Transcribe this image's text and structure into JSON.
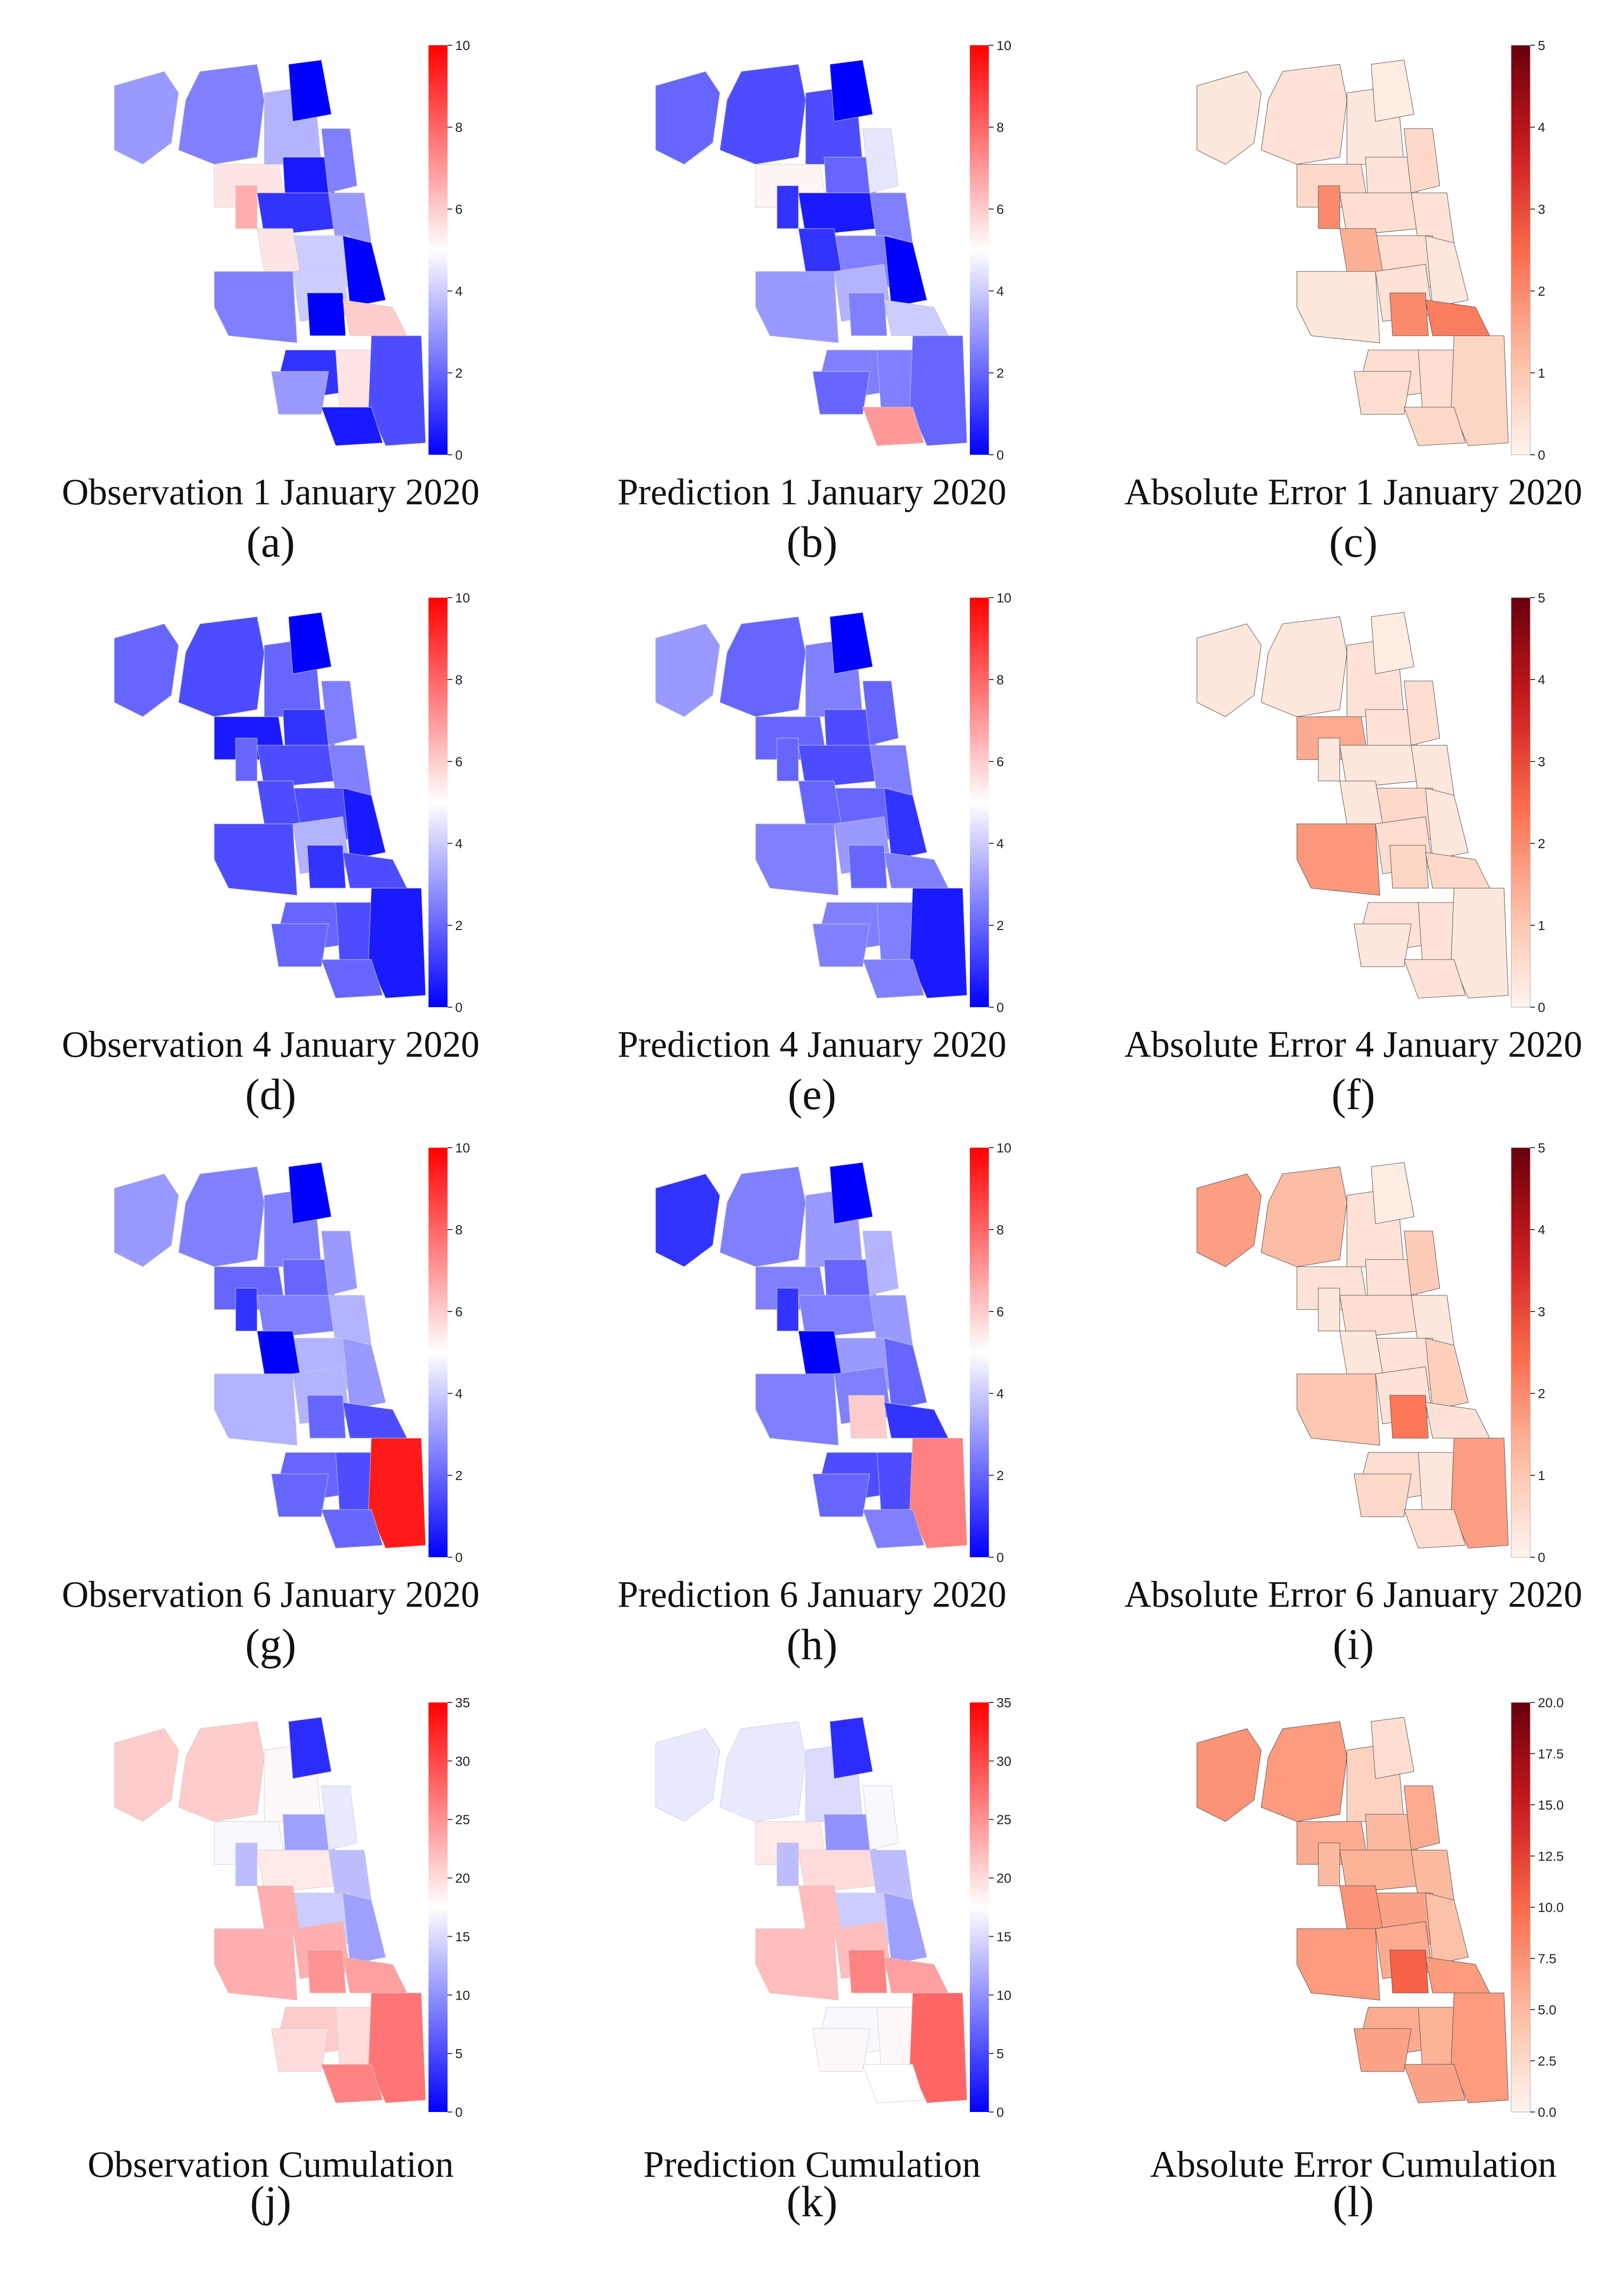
{
  "figure": {
    "panels": [
      {
        "id": "a",
        "label": "(a)",
        "title": "Observation 1 January 2020",
        "kind": "obs",
        "colorscale": "bwr",
        "ticks": [
          "0",
          "2",
          "4",
          "6",
          "8",
          "10"
        ],
        "vmax": 10,
        "region_values": [
          3,
          2.5,
          3.5,
          0,
          5.5,
          6.6,
          0.5,
          1,
          2.5,
          3,
          4,
          0,
          5.5,
          2.5,
          4,
          0,
          6,
          1,
          3,
          5.5,
          1.5,
          0.5
        ]
      },
      {
        "id": "b",
        "label": "(b)",
        "title": "Prediction 1 January 2020",
        "kind": "pred",
        "colorscale": "bwr",
        "ticks": [
          "0",
          "2",
          "4",
          "6",
          "8",
          "10"
        ],
        "vmax": 10,
        "region_values": [
          2,
          1.5,
          1.5,
          0,
          5.2,
          1,
          2,
          0.5,
          4.5,
          2.5,
          2.5,
          0,
          1,
          3,
          3.5,
          2.5,
          4,
          2.5,
          2,
          2.5,
          2,
          7
        ]
      },
      {
        "id": "c",
        "label": "(c)",
        "title": "Absolute Error 1 January 2020",
        "kind": "err",
        "colorscale": "reds",
        "ticks": [
          "0",
          "1",
          "2",
          "3",
          "4",
          "5"
        ],
        "vmax": 5,
        "region_values": [
          0.3,
          0.4,
          0.3,
          0.2,
          0.6,
          2,
          0.4,
          0.5,
          0.6,
          0.4,
          0.5,
          0.3,
          1.4,
          0.3,
          0.4,
          2,
          2.2,
          0.5,
          0.5,
          0.5,
          0.7,
          0.6
        ]
      },
      {
        "id": "d",
        "label": "(d)",
        "title": "Observation 4 January 2020",
        "kind": "obs",
        "colorscale": "bwr",
        "ticks": [
          "0",
          "2",
          "4",
          "6",
          "8",
          "10"
        ],
        "vmax": 10,
        "region_values": [
          2,
          1.5,
          2,
          0,
          0.5,
          2,
          1,
          1.5,
          2.5,
          2.5,
          1.5,
          0.5,
          1.5,
          1.5,
          3.5,
          1,
          1.5,
          2,
          2,
          1.5,
          0.5,
          2
        ]
      },
      {
        "id": "e",
        "label": "(e)",
        "title": "Prediction 4 January 2020",
        "kind": "pred",
        "colorscale": "bwr",
        "ticks": [
          "0",
          "2",
          "4",
          "6",
          "8",
          "10"
        ],
        "vmax": 10,
        "region_values": [
          3,
          2,
          2.5,
          0,
          2,
          2,
          1.5,
          1.5,
          2,
          2.5,
          2,
          1,
          2,
          2.5,
          3,
          2,
          2.5,
          2.5,
          2.5,
          2.5,
          0.5,
          2.5
        ]
      },
      {
        "id": "f",
        "label": "(f)",
        "title": "Absolute Error  4 January 2020",
        "kind": "err",
        "colorscale": "reds",
        "ticks": [
          "0",
          "1",
          "2",
          "3",
          "4",
          "5"
        ],
        "vmax": 5,
        "region_values": [
          0.3,
          0.3,
          0.4,
          0.2,
          1.5,
          0.3,
          0.4,
          0.3,
          0.5,
          0.3,
          0.6,
          0.3,
          0.3,
          1.8,
          0.5,
          0.7,
          0.6,
          0.4,
          0.3,
          0.4,
          0.3,
          0.4
        ]
      },
      {
        "id": "g",
        "label": "(g)",
        "title": "Observation 6 January 2020",
        "kind": "obs",
        "colorscale": "bwr",
        "ticks": [
          "0",
          "2",
          "4",
          "6",
          "8",
          "10"
        ],
        "vmax": 10,
        "region_values": [
          3,
          2.5,
          2.5,
          0,
          2,
          1,
          2,
          2.5,
          3,
          3.5,
          3.5,
          3,
          0,
          3.5,
          3.5,
          2,
          1.5,
          2,
          2,
          1.5,
          9.5,
          2
        ]
      },
      {
        "id": "h",
        "label": "(h)",
        "title": "Prediction 6 January 2020",
        "kind": "pred",
        "colorscale": "bwr",
        "ticks": [
          "0",
          "2",
          "4",
          "6",
          "8",
          "10"
        ],
        "vmax": 10,
        "region_values": [
          1,
          2.5,
          3,
          0,
          2.5,
          1,
          2,
          2.5,
          3.5,
          3,
          3,
          2,
          0,
          2.5,
          2.5,
          6,
          1,
          1.5,
          2,
          1.5,
          7.5,
          2.5
        ]
      },
      {
        "id": "i",
        "label": "(i)",
        "title": "Absolute Error 6 January 2020",
        "kind": "err",
        "colorscale": "reds",
        "ticks": [
          "0",
          "1",
          "2",
          "3",
          "4",
          "5"
        ],
        "vmax": 5,
        "region_values": [
          1.7,
          1.2,
          0.4,
          0.2,
          0.4,
          0.3,
          0.4,
          0.5,
          0.9,
          0.3,
          0.4,
          0.8,
          0.3,
          1,
          0.4,
          2.3,
          0.4,
          0.5,
          0.6,
          0.3,
          1.7,
          0.5
        ]
      },
      {
        "id": "j",
        "label": "(j)",
        "title": "Observation Cumulation",
        "kind": "obs",
        "colorscale": "bwr",
        "ticks": [
          "0",
          "5",
          "10",
          "15",
          "20",
          "25",
          "30",
          "35"
        ],
        "vmax": 35,
        "region_values": [
          21,
          21,
          18,
          3,
          17,
          13,
          11,
          19,
          16,
          13,
          14,
          11,
          23,
          23,
          23,
          25,
          24,
          21,
          20,
          20,
          27,
          26
        ]
      },
      {
        "id": "k",
        "label": "(k)",
        "title": "Prediction Cumulation",
        "kind": "pred",
        "colorscale": "bwr",
        "ticks": [
          "0",
          "5",
          "10",
          "15",
          "20",
          "25",
          "30",
          "35"
        ],
        "vmax": 35,
        "region_values": [
          16,
          16,
          15,
          3,
          19,
          13,
          10,
          20,
          17,
          13,
          14,
          11,
          22,
          22,
          22,
          26,
          24,
          17,
          18,
          18,
          28,
          17.5
        ]
      },
      {
        "id": "l",
        "label": "(l)",
        "title": "Absolute Error Cumulation",
        "kind": "err",
        "colorscale": "reds",
        "ticks": [
          "0.0",
          "2.5",
          "5.0",
          "7.5",
          "10.0",
          "12.5",
          "15.0",
          "17.5",
          "20.0"
        ],
        "vmax": 20,
        "region_values": [
          7.5,
          7,
          3,
          2,
          6,
          5,
          5,
          5.5,
          6,
          5,
          6.5,
          4.5,
          7.5,
          7,
          6,
          10.5,
          7,
          6,
          6.5,
          5.5,
          7,
          6.5
        ]
      }
    ]
  }
}
